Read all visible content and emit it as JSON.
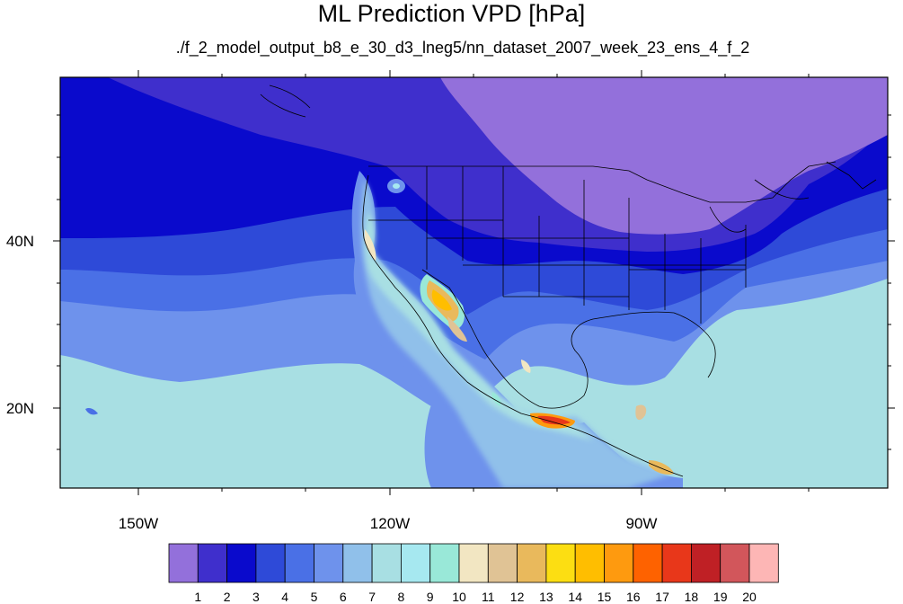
{
  "title": "ML Prediction VPD [hPa]",
  "subtitle": "./f_2_model_output_b8_e_30_d3_lneg5/nn_dataset_2007_week_23_ens_4_f_2",
  "axes": {
    "lon_labels": [
      "150W",
      "120W",
      "90W"
    ],
    "lat_labels": [
      "40N",
      "20N"
    ]
  },
  "colorbar": {
    "labels": [
      "1",
      "2",
      "3",
      "4",
      "5",
      "6",
      "7",
      "8",
      "9",
      "10",
      "11",
      "12",
      "13",
      "14",
      "15",
      "16",
      "17",
      "18",
      "19",
      "20"
    ],
    "colors": [
      "#9370DB",
      "#3F2FCC",
      "#0A0ACC",
      "#2E4AD8",
      "#4A70E6",
      "#6E92EC",
      "#90C0EA",
      "#A8DFE3",
      "#A6E8F0",
      "#99E8D8",
      "#F2E6C2",
      "#E0C395",
      "#E9B95C",
      "#FCDE12",
      "#FFBE00",
      "#FE9A0F",
      "#FE6200",
      "#E8371A",
      "#BF2025",
      "#D2565B",
      "#FDB6B5"
    ]
  },
  "chart_data": {
    "type": "heatmap",
    "title": "ML Prediction VPD [hPa]",
    "subtitle": "./f_2_model_output_b8_e_30_d3_lneg5/nn_dataset_2007_week_23_ens_4_f_2",
    "x_ticks": [
      "150W",
      "120W",
      "90W"
    ],
    "y_ticks": [
      "40N",
      "20N"
    ],
    "color_levels": [
      1,
      2,
      3,
      4,
      5,
      6,
      7,
      8,
      9,
      10,
      11,
      12,
      13,
      14,
      15,
      16,
      17,
      18,
      19,
      20
    ]
  }
}
